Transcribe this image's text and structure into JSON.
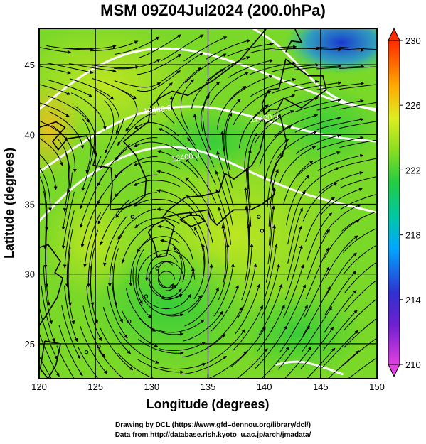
{
  "title": "MSM 09Z04Jul2024 (200.0hPa)",
  "credit_line1": "Drawing by DCL (https://www.gfd–dennou.org/library/dcl/)",
  "credit_line2": "Data from http://database.rish.kyoto–u.ac.jp/arch/jmadata/",
  "chart_data": {
    "type": "heatmap",
    "title": "MSM 09Z04Jul2024 (200.0hPa)",
    "xlabel": "Longitude (degrees)",
    "ylabel": "Latitude  (degrees)",
    "xlim": [
      120,
      150
    ],
    "ylim": [
      22.5,
      47.6
    ],
    "xticks": [
      120,
      125,
      130,
      135,
      140,
      145,
      150
    ],
    "yticks": [
      25,
      30,
      35,
      40,
      45
    ],
    "grid": true,
    "colorbar": {
      "min": 210,
      "max": 230,
      "ticks": [
        210,
        214,
        218,
        222,
        226,
        230
      ],
      "colors": [
        "#e040e0",
        "#3030d0",
        "#00a8ff",
        "#00c8a0",
        "#22cc44",
        "#88dd22",
        "#ddee22",
        "#ffaa00",
        "#ff2a00"
      ],
      "extend": "both"
    },
    "contours": {
      "label": "12400.0",
      "lines": [
        [
          [
            120,
            37.3
          ],
          [
            123,
            39
          ],
          [
            126,
            40.5
          ],
          [
            129,
            41.6
          ],
          [
            132,
            42
          ],
          [
            135,
            42
          ],
          [
            138,
            41.5
          ],
          [
            141,
            40.8
          ],
          [
            144,
            40.2
          ],
          [
            147,
            39.7
          ],
          [
            150,
            39.5
          ]
        ],
        [
          [
            120,
            33.8
          ],
          [
            123,
            36.3
          ],
          [
            126,
            37.9
          ],
          [
            129,
            38.9
          ],
          [
            132,
            39.2
          ],
          [
            135,
            38.7
          ],
          [
            138,
            37.6
          ],
          [
            141,
            36.5
          ],
          [
            144,
            35.6
          ],
          [
            147,
            35
          ],
          [
            150,
            34.4
          ]
        ],
        [
          [
            120,
            41.8
          ],
          [
            123,
            43.8
          ],
          [
            126,
            45.3
          ],
          [
            129,
            46.1
          ],
          [
            132,
            46.2
          ],
          [
            135,
            45.8
          ],
          [
            138,
            45
          ],
          [
            141,
            44.1
          ],
          [
            144,
            43.1
          ],
          [
            147,
            42.2
          ],
          [
            150,
            41.8
          ]
        ],
        [
          [
            139,
            47.6
          ],
          [
            141,
            46.6
          ],
          [
            143,
            45
          ],
          [
            145,
            43.3
          ],
          [
            147,
            42.3
          ],
          [
            149,
            41.9
          ],
          [
            150,
            41.7
          ]
        ],
        [
          [
            141,
            23.5
          ],
          [
            143,
            23.8
          ],
          [
            145,
            23.4
          ],
          [
            147,
            22.8
          ]
        ]
      ],
      "labels": [
        [
          130.5,
          41.8
        ],
        [
          140,
          41.2
        ],
        [
          133,
          38.4
        ]
      ]
    },
    "cyclone_center": [
      131.3,
      29.6
    ]
  }
}
